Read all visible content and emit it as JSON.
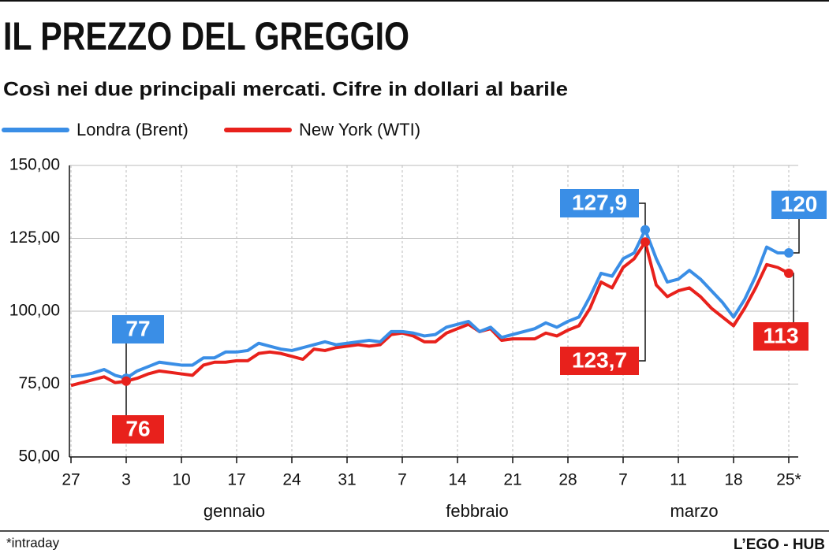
{
  "chart_data": {
    "type": "line",
    "title": "IL PREZZO DEL GREGGIO",
    "subtitle": "Così nei due principali mercati. Cifre in dollari al barile",
    "footnote": "*intraday",
    "source": "L’EGO - HUB",
    "categories": [
      "27",
      null,
      null,
      null,
      null,
      "3",
      null,
      null,
      null,
      null,
      "10",
      null,
      null,
      null,
      null,
      "17",
      null,
      null,
      null,
      null,
      "24",
      null,
      null,
      null,
      null,
      "31",
      null,
      null,
      null,
      null,
      "7",
      null,
      null,
      null,
      null,
      "14",
      null,
      null,
      null,
      null,
      "21",
      null,
      null,
      null,
      null,
      "28",
      null,
      null,
      null,
      null,
      "7",
      null,
      null,
      null,
      null,
      "11",
      null,
      null,
      null,
      null,
      "18",
      null,
      null,
      null,
      null,
      "25*"
    ],
    "months": [
      "gennaio",
      "febbraio",
      "marzo"
    ],
    "series": [
      {
        "name": "Londra (Brent)",
        "color": "#3a8ee6",
        "values": [
          77.5,
          78,
          78.8,
          80,
          78,
          77,
          79.5,
          81,
          82.5,
          82,
          81.5,
          81.5,
          84,
          84,
          86,
          86,
          86.5,
          89,
          88,
          87,
          86.5,
          87.5,
          88.5,
          89.5,
          88.5,
          89,
          89.5,
          90,
          89.5,
          93,
          93,
          92.5,
          91.5,
          92,
          94.5,
          95.5,
          96.5,
          93,
          94.5,
          91,
          92,
          93,
          94,
          96,
          94.5,
          96.5,
          98,
          105,
          113,
          112,
          118,
          120,
          127.9,
          118,
          110,
          111,
          114,
          111,
          107,
          103,
          98,
          104,
          112,
          122,
          120,
          120
        ],
        "value_labels": [
          null,
          null,
          null,
          null,
          null,
          "77",
          null,
          null,
          null,
          null,
          null,
          null,
          null,
          null,
          null,
          null,
          null,
          null,
          null,
          null,
          null,
          null,
          null,
          null,
          null,
          null,
          null,
          null,
          null,
          null,
          null,
          null,
          null,
          null,
          null,
          null,
          null,
          null,
          null,
          null,
          null,
          null,
          null,
          null,
          null,
          null,
          null,
          null,
          null,
          null,
          null,
          null,
          "127,9",
          null,
          null,
          null,
          null,
          null,
          null,
          null,
          null,
          null,
          null,
          null,
          null,
          "120"
        ]
      },
      {
        "name": "New York (WTI)",
        "color": "#e8211c",
        "values": [
          74.5,
          75.5,
          76.5,
          77.5,
          75.5,
          76,
          77,
          78.5,
          79.5,
          79,
          78.5,
          78,
          81.5,
          82.5,
          82.5,
          83,
          83,
          85.5,
          86,
          85.5,
          84.5,
          83.5,
          87,
          86.5,
          87.5,
          88,
          88.5,
          88,
          88.5,
          92,
          92.5,
          91.5,
          89.5,
          89.5,
          92.5,
          94,
          95.5,
          93,
          94,
          90,
          90.5,
          90.5,
          90.5,
          92.5,
          91.5,
          93.5,
          95,
          101,
          110,
          108,
          115,
          118,
          123.7,
          109,
          105,
          107,
          108,
          105,
          101,
          98,
          95,
          101,
          108,
          116,
          115,
          113
        ],
        "value_labels": [
          null,
          null,
          null,
          null,
          null,
          "76",
          null,
          null,
          null,
          null,
          null,
          null,
          null,
          null,
          null,
          null,
          null,
          null,
          null,
          null,
          null,
          null,
          null,
          null,
          null,
          null,
          null,
          null,
          null,
          null,
          null,
          null,
          null,
          null,
          null,
          null,
          null,
          null,
          null,
          null,
          null,
          null,
          null,
          null,
          null,
          null,
          null,
          null,
          null,
          null,
          null,
          null,
          "123,7",
          null,
          null,
          null,
          null,
          null,
          null,
          null,
          null,
          null,
          null,
          null,
          null,
          "113"
        ]
      }
    ],
    "ylim": [
      50,
      150
    ],
    "yticks": [
      {
        "value": 50,
        "label": "50,00"
      },
      {
        "value": 75,
        "label": "75,00"
      },
      {
        "value": 100,
        "label": "100,00"
      },
      {
        "value": 125,
        "label": "125,00"
      },
      {
        "value": 150,
        "label": "150,00"
      }
    ],
    "grid": true
  }
}
